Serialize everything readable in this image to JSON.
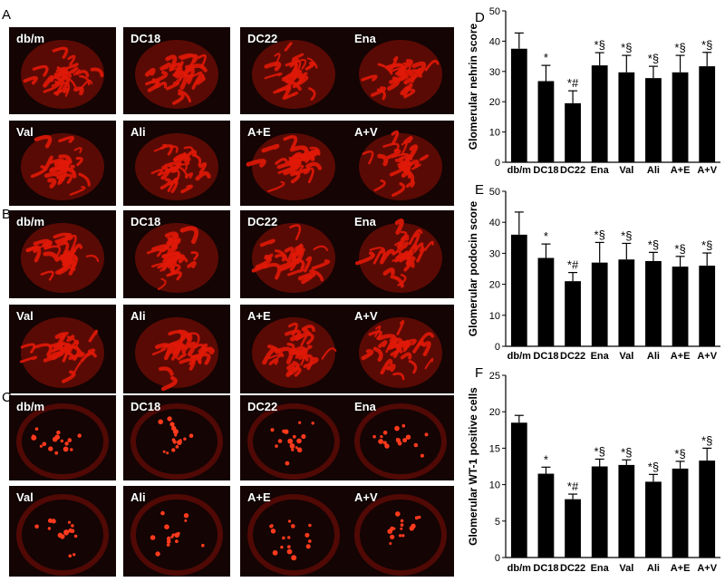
{
  "figure": {
    "panel_letters": [
      "A",
      "B",
      "C",
      "D",
      "E",
      "F"
    ],
    "image_rows": [
      {
        "panel": "A",
        "labels": [
          "db/m",
          "DC18",
          "DC22",
          "Ena"
        ],
        "pattern": "mesh"
      },
      {
        "panel": "A",
        "labels": [
          "Val",
          "Ali",
          "A+E",
          "A+V"
        ],
        "pattern": "mesh"
      },
      {
        "panel": "B",
        "labels": [
          "db/m",
          "DC18",
          "DC22",
          "Ena"
        ],
        "pattern": "mesh"
      },
      {
        "panel": "B",
        "labels": [
          "Val",
          "Ali",
          "A+E",
          "A+V"
        ],
        "pattern": "mesh"
      },
      {
        "panel": "C",
        "labels": [
          "db/m",
          "DC18",
          "DC22",
          "Ena"
        ],
        "pattern": "dots"
      },
      {
        "panel": "C",
        "labels": [
          "Val",
          "Ali",
          "A+E",
          "A+V"
        ],
        "pattern": "dots"
      }
    ],
    "colors": {
      "stain": "#e01808",
      "tile_bg": "#140404",
      "bar": "#000000"
    }
  },
  "chart_data": [
    {
      "panel": "D",
      "type": "bar",
      "categories": [
        "db/m",
        "DC18",
        "DC22",
        "Ena",
        "Val",
        "Ali",
        "A+E",
        "A+V"
      ],
      "values": [
        37.5,
        26.8,
        19.5,
        32.0,
        29.7,
        27.8,
        29.7,
        31.7
      ],
      "errors": [
        5.2,
        5.2,
        4.1,
        4.2,
        5.6,
        3.9,
        5.6,
        4.6
      ],
      "annotations": [
        "",
        "*",
        "*#",
        "*§",
        "*§",
        "*§",
        "*§",
        "*§"
      ],
      "ylabel": "Glomerular nehrin score",
      "ylim": [
        0,
        50
      ],
      "yticks": [
        0,
        10,
        20,
        30,
        40,
        50
      ]
    },
    {
      "panel": "E",
      "type": "bar",
      "categories": [
        "db/m",
        "DC18",
        "DC22",
        "Ena",
        "Val",
        "Ali",
        "A+E",
        "A+V"
      ],
      "values": [
        36.0,
        28.5,
        21.0,
        27.0,
        28.0,
        27.5,
        25.7,
        26.0
      ],
      "errors": [
        7.3,
        4.5,
        2.8,
        6.5,
        5.2,
        2.8,
        3.3,
        4.1
      ],
      "annotations": [
        "",
        "*",
        "*#",
        "*§",
        "*§",
        "*§",
        "*§",
        "*§"
      ],
      "ylabel": "Glomerular podocin score",
      "ylim": [
        0,
        50
      ],
      "yticks": [
        0,
        10,
        20,
        30,
        40,
        50
      ]
    },
    {
      "panel": "F",
      "type": "bar",
      "categories": [
        "db/m",
        "DC18",
        "DC22",
        "Ena",
        "Val",
        "Ali",
        "A+E",
        "A+V"
      ],
      "values": [
        18.5,
        11.5,
        8.0,
        12.5,
        12.7,
        10.4,
        12.2,
        13.3
      ],
      "errors": [
        1.0,
        0.9,
        0.7,
        1.0,
        0.7,
        1.0,
        1.0,
        1.7
      ],
      "annotations": [
        "",
        "*",
        "*#",
        "*§",
        "*§",
        "*§",
        "*§",
        "*§"
      ],
      "ylabel": "Glomerular WT-1 positive cells",
      "ylim": [
        0,
        25
      ],
      "yticks": [
        0,
        5,
        10,
        15,
        20,
        25
      ]
    }
  ]
}
